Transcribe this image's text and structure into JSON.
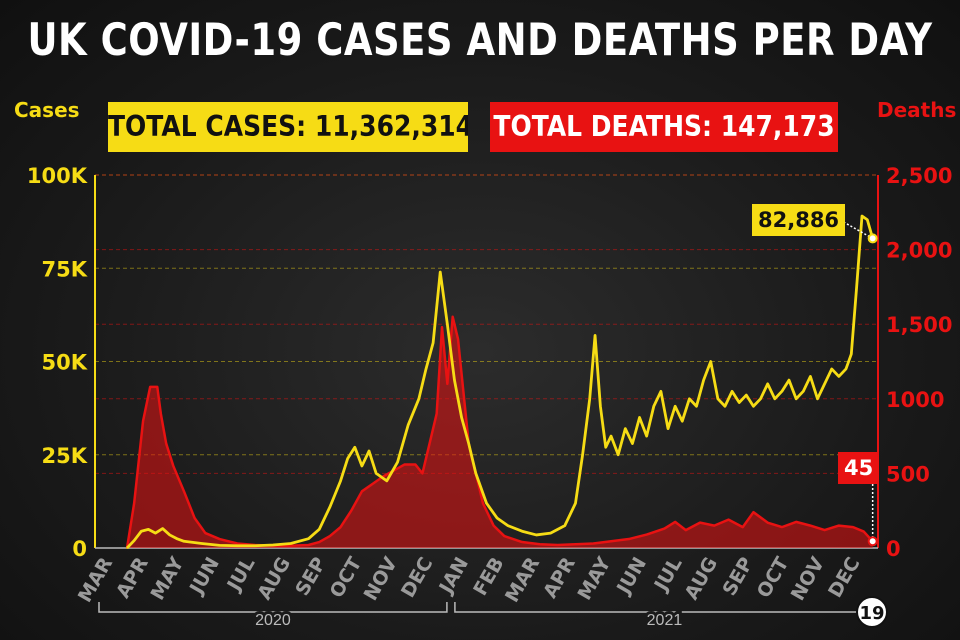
{
  "header": {
    "title": "UK COVID-19 CASES AND DEATHS PER DAY"
  },
  "totals": {
    "cases_label": "TOTAL CASES: 11,362,314",
    "deaths_label": "TOTAL DEATHS: 147,173"
  },
  "colors": {
    "cases": "#f6dc15",
    "deaths": "#e81212",
    "grid": "#8a8a8a"
  },
  "chart_data": {
    "type": "line",
    "title": "UK COVID-19 CASES AND DEATHS PER DAY",
    "x_unit": "months since March 2020",
    "xlim": [
      0,
      22
    ],
    "y_left": {
      "label": "Cases",
      "lim": [
        0,
        100000
      ],
      "ticks": [
        "0",
        "25K",
        "50K",
        "75K",
        "100K"
      ],
      "tick_values": [
        0,
        25000,
        50000,
        75000,
        100000
      ]
    },
    "y_right": {
      "label": "Deaths",
      "lim": [
        0,
        2500
      ],
      "ticks": [
        "0",
        "500",
        "1000",
        "1,500",
        "2,000",
        "2,500"
      ],
      "tick_values": [
        0,
        500,
        1000,
        1500,
        2000,
        2500
      ]
    },
    "month_labels": [
      "MAR",
      "APR",
      "MAY",
      "JUN",
      "JUL",
      "AUG",
      "SEP",
      "OCT",
      "NOV",
      "DEC",
      "JAN",
      "FEB",
      "MAR",
      "APR",
      "MAY",
      "JUN",
      "JUL",
      "AUG",
      "SEP",
      "OCT",
      "NOV",
      "DEC"
    ],
    "years": [
      {
        "label": "2020",
        "from": 0,
        "to": 10
      },
      {
        "label": "2021",
        "from": 10,
        "to": 22
      }
    ],
    "grid": true,
    "series": [
      {
        "name": "Cases",
        "axis": "left",
        "color": "#f6dc15",
        "points": [
          [
            0.9,
            0
          ],
          [
            1.1,
            2000
          ],
          [
            1.3,
            4500
          ],
          [
            1.5,
            5000
          ],
          [
            1.7,
            4000
          ],
          [
            1.9,
            5200
          ],
          [
            2.1,
            3500
          ],
          [
            2.3,
            2500
          ],
          [
            2.5,
            1800
          ],
          [
            3,
            1200
          ],
          [
            3.5,
            700
          ],
          [
            4,
            600
          ],
          [
            4.5,
            600
          ],
          [
            5,
            800
          ],
          [
            5.5,
            1200
          ],
          [
            6,
            2500
          ],
          [
            6.3,
            5000
          ],
          [
            6.6,
            11000
          ],
          [
            6.9,
            18000
          ],
          [
            7.1,
            24000
          ],
          [
            7.3,
            27000
          ],
          [
            7.5,
            22000
          ],
          [
            7.7,
            26000
          ],
          [
            7.9,
            20000
          ],
          [
            8.2,
            18000
          ],
          [
            8.5,
            23000
          ],
          [
            8.8,
            33000
          ],
          [
            9.1,
            40000
          ],
          [
            9.3,
            48000
          ],
          [
            9.5,
            55000
          ],
          [
            9.7,
            74000
          ],
          [
            9.9,
            60000
          ],
          [
            10.1,
            45000
          ],
          [
            10.3,
            35000
          ],
          [
            10.5,
            28000
          ],
          [
            10.7,
            20000
          ],
          [
            11,
            12000
          ],
          [
            11.3,
            8000
          ],
          [
            11.6,
            6000
          ],
          [
            12,
            4500
          ],
          [
            12.4,
            3500
          ],
          [
            12.8,
            4000
          ],
          [
            13.2,
            6000
          ],
          [
            13.5,
            12000
          ],
          [
            13.7,
            25000
          ],
          [
            13.9,
            40000
          ],
          [
            14.05,
            57000
          ],
          [
            14.2,
            38000
          ],
          [
            14.35,
            27000
          ],
          [
            14.5,
            30000
          ],
          [
            14.7,
            25000
          ],
          [
            14.9,
            32000
          ],
          [
            15.1,
            28000
          ],
          [
            15.3,
            35000
          ],
          [
            15.5,
            30000
          ],
          [
            15.7,
            38000
          ],
          [
            15.9,
            42000
          ],
          [
            16.1,
            32000
          ],
          [
            16.3,
            38000
          ],
          [
            16.5,
            34000
          ],
          [
            16.7,
            40000
          ],
          [
            16.9,
            38000
          ],
          [
            17.1,
            45000
          ],
          [
            17.3,
            50000
          ],
          [
            17.5,
            40000
          ],
          [
            17.7,
            38000
          ],
          [
            17.9,
            42000
          ],
          [
            18.1,
            39000
          ],
          [
            18.3,
            41000
          ],
          [
            18.5,
            38000
          ],
          [
            18.7,
            40000
          ],
          [
            18.9,
            44000
          ],
          [
            19.1,
            40000
          ],
          [
            19.3,
            42000
          ],
          [
            19.5,
            45000
          ],
          [
            19.7,
            40000
          ],
          [
            19.9,
            42000
          ],
          [
            20.1,
            46000
          ],
          [
            20.3,
            40000
          ],
          [
            20.5,
            44000
          ],
          [
            20.7,
            48000
          ],
          [
            20.9,
            46000
          ],
          [
            21.1,
            48000
          ],
          [
            21.25,
            52000
          ],
          [
            21.4,
            70000
          ],
          [
            21.55,
            89000
          ],
          [
            21.7,
            88000
          ],
          [
            21.85,
            83000
          ]
        ]
      },
      {
        "name": "Deaths",
        "axis": "right",
        "color": "#e81212",
        "points": [
          [
            0.9,
            0
          ],
          [
            1.1,
            300
          ],
          [
            1.35,
            850
          ],
          [
            1.55,
            1080
          ],
          [
            1.75,
            1080
          ],
          [
            1.85,
            900
          ],
          [
            2.0,
            700
          ],
          [
            2.2,
            550
          ],
          [
            2.5,
            380
          ],
          [
            2.8,
            200
          ],
          [
            3.1,
            100
          ],
          [
            3.5,
            60
          ],
          [
            4,
            30
          ],
          [
            4.5,
            20
          ],
          [
            5,
            15
          ],
          [
            5.5,
            15
          ],
          [
            6,
            20
          ],
          [
            6.3,
            40
          ],
          [
            6.6,
            80
          ],
          [
            6.9,
            140
          ],
          [
            7.2,
            250
          ],
          [
            7.5,
            380
          ],
          [
            7.8,
            430
          ],
          [
            8.1,
            480
          ],
          [
            8.4,
            520
          ],
          [
            8.7,
            560
          ],
          [
            9.0,
            560
          ],
          [
            9.2,
            500
          ],
          [
            9.4,
            700
          ],
          [
            9.6,
            900
          ],
          [
            9.75,
            1480
          ],
          [
            9.9,
            1100
          ],
          [
            10.05,
            1550
          ],
          [
            10.2,
            1400
          ],
          [
            10.35,
            1050
          ],
          [
            10.5,
            700
          ],
          [
            10.7,
            500
          ],
          [
            10.9,
            300
          ],
          [
            11.2,
            150
          ],
          [
            11.5,
            80
          ],
          [
            12,
            40
          ],
          [
            12.5,
            25
          ],
          [
            13,
            20
          ],
          [
            13.5,
            25
          ],
          [
            14,
            30
          ],
          [
            14.5,
            45
          ],
          [
            15,
            60
          ],
          [
            15.5,
            90
          ],
          [
            16,
            130
          ],
          [
            16.3,
            175
          ],
          [
            16.6,
            120
          ],
          [
            17,
            170
          ],
          [
            17.4,
            150
          ],
          [
            17.8,
            190
          ],
          [
            18.2,
            140
          ],
          [
            18.5,
            240
          ],
          [
            18.9,
            170
          ],
          [
            19.3,
            140
          ],
          [
            19.7,
            175
          ],
          [
            20.1,
            150
          ],
          [
            20.5,
            120
          ],
          [
            20.9,
            150
          ],
          [
            21.3,
            140
          ],
          [
            21.6,
            110
          ],
          [
            21.85,
            45
          ]
        ]
      }
    ],
    "annotations": [
      {
        "series": "Cases",
        "label": "82,886",
        "x": 21.85,
        "y": 83000
      },
      {
        "series": "Deaths",
        "label": "45",
        "x": 21.85,
        "y": 45
      }
    ],
    "corner_badge": "19"
  }
}
